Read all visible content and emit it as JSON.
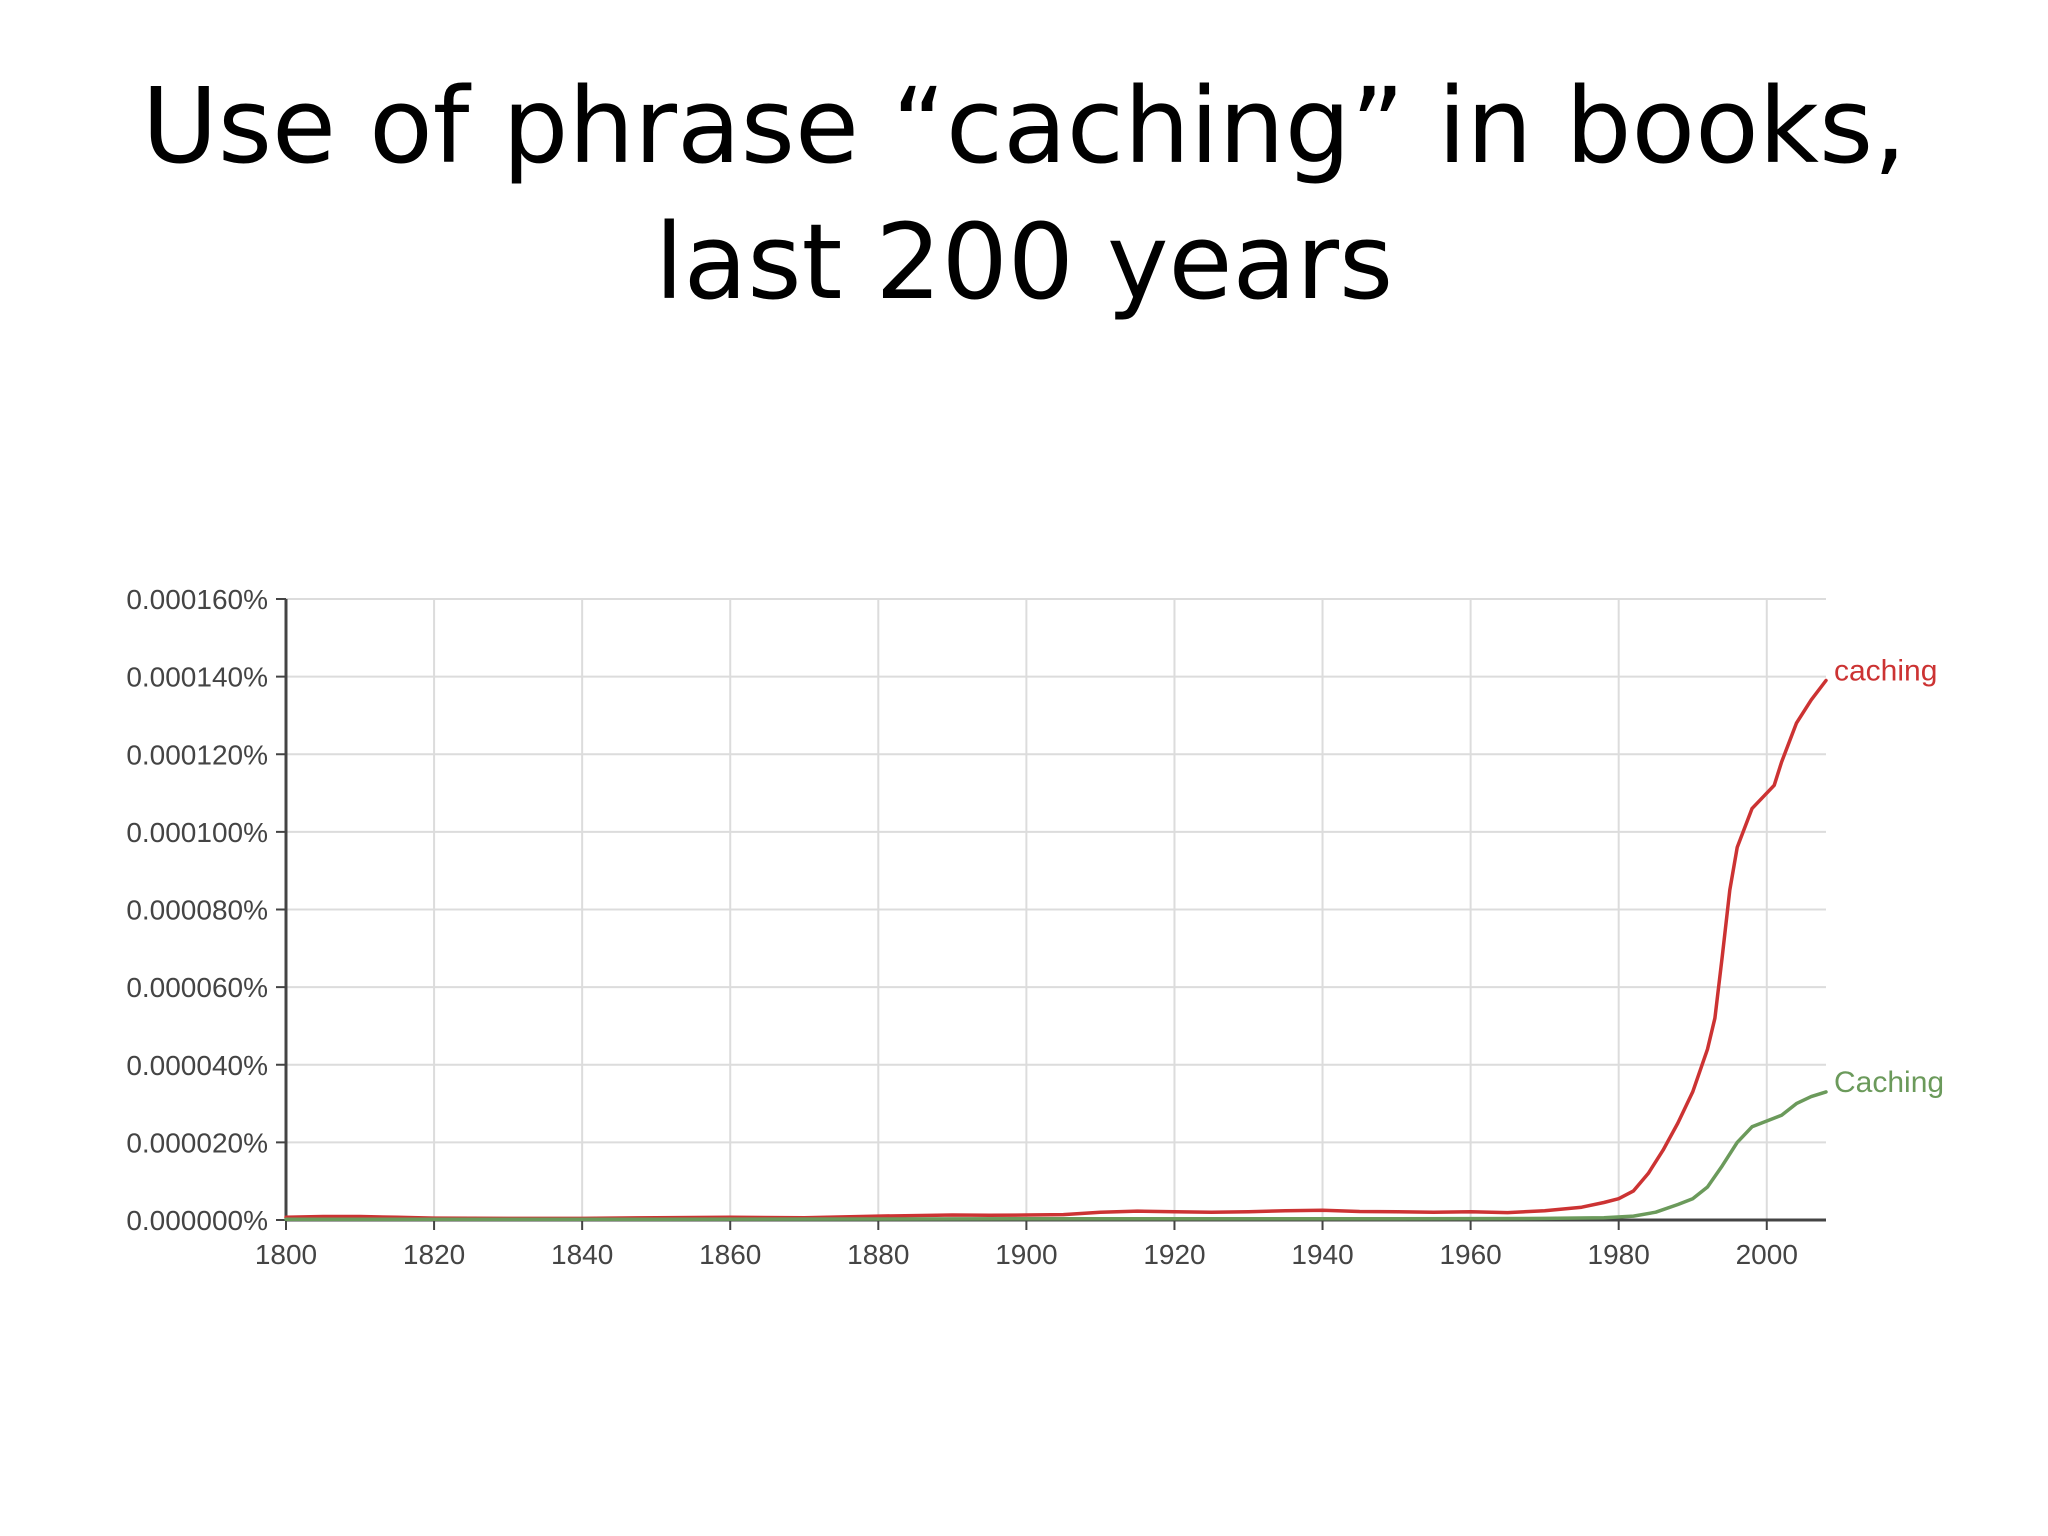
{
  "slide": {
    "title": "Use of phrase “caching” in books, last 200 years"
  },
  "chart_data": {
    "type": "line",
    "title": "",
    "xlabel": "",
    "ylabel": "",
    "xlim": [
      1800,
      2008
    ],
    "ylim": [
      0,
      0.00016
    ],
    "grid": true,
    "x_ticks": [
      1800,
      1820,
      1840,
      1860,
      1880,
      1900,
      1920,
      1940,
      1960,
      1980,
      2000
    ],
    "y_ticks": [
      {
        "value": 0.00016,
        "label": "0.000160%"
      },
      {
        "value": 0.00014,
        "label": "0.000140%"
      },
      {
        "value": 0.00012,
        "label": "0.000120%"
      },
      {
        "value": 0.0001,
        "label": "0.000100%"
      },
      {
        "value": 8e-05,
        "label": "0.000080%"
      },
      {
        "value": 6e-05,
        "label": "0.000060%"
      },
      {
        "value": 4e-05,
        "label": "0.000040%"
      },
      {
        "value": 2e-05,
        "label": "0.000020%"
      },
      {
        "value": 0,
        "label": "0.000000%"
      }
    ],
    "series": [
      {
        "name": "caching",
        "color": "#cc3333",
        "points": [
          [
            1800,
            7e-07
          ],
          [
            1805,
            9e-07
          ],
          [
            1810,
            9e-07
          ],
          [
            1815,
            7e-07
          ],
          [
            1820,
            5e-07
          ],
          [
            1830,
            4e-07
          ],
          [
            1840,
            4e-07
          ],
          [
            1850,
            6e-07
          ],
          [
            1860,
            7e-07
          ],
          [
            1870,
            6e-07
          ],
          [
            1880,
            1e-06
          ],
          [
            1890,
            1.3e-06
          ],
          [
            1895,
            1.2e-06
          ],
          [
            1900,
            1.3e-06
          ],
          [
            1905,
            1.4e-06
          ],
          [
            1910,
            2e-06
          ],
          [
            1915,
            2.3e-06
          ],
          [
            1920,
            2.1e-06
          ],
          [
            1925,
            2e-06
          ],
          [
            1930,
            2.1e-06
          ],
          [
            1935,
            2.4e-06
          ],
          [
            1940,
            2.5e-06
          ],
          [
            1945,
            2.2e-06
          ],
          [
            1950,
            2.1e-06
          ],
          [
            1955,
            2e-06
          ],
          [
            1960,
            2.1e-06
          ],
          [
            1965,
            1.9e-06
          ],
          [
            1970,
            2.4e-06
          ],
          [
            1975,
            3.3e-06
          ],
          [
            1978,
            4.5e-06
          ],
          [
            1980,
            5.5e-06
          ],
          [
            1982,
            7.5e-06
          ],
          [
            1984,
            1.2e-05
          ],
          [
            1986,
            1.8e-05
          ],
          [
            1988,
            2.5e-05
          ],
          [
            1990,
            3.3e-05
          ],
          [
            1992,
            4.4e-05
          ],
          [
            1993,
            5.2e-05
          ],
          [
            1994,
            6.8e-05
          ],
          [
            1995,
            8.5e-05
          ],
          [
            1996,
            9.6e-05
          ],
          [
            1998,
            0.000106
          ],
          [
            2000,
            0.00011
          ],
          [
            2001,
            0.000112
          ],
          [
            2002,
            0.000118
          ],
          [
            2004,
            0.000128
          ],
          [
            2006,
            0.000134
          ],
          [
            2008,
            0.000139
          ]
        ]
      },
      {
        "name": "Caching",
        "color": "#6b9a5b",
        "points": [
          [
            1800,
            2e-07
          ],
          [
            1850,
            2e-07
          ],
          [
            1900,
            3e-07
          ],
          [
            1950,
            3e-07
          ],
          [
            1970,
            4e-07
          ],
          [
            1978,
            6e-07
          ],
          [
            1982,
            1e-06
          ],
          [
            1985,
            2e-06
          ],
          [
            1988,
            4e-06
          ],
          [
            1990,
            5.5e-06
          ],
          [
            1992,
            8.5e-06
          ],
          [
            1994,
            1.4e-05
          ],
          [
            1996,
            2e-05
          ],
          [
            1998,
            2.4e-05
          ],
          [
            2000,
            2.55e-05
          ],
          [
            2002,
            2.7e-05
          ],
          [
            2004,
            3e-05
          ],
          [
            2006,
            3.18e-05
          ],
          [
            2008,
            3.3e-05
          ]
        ]
      }
    ]
  }
}
